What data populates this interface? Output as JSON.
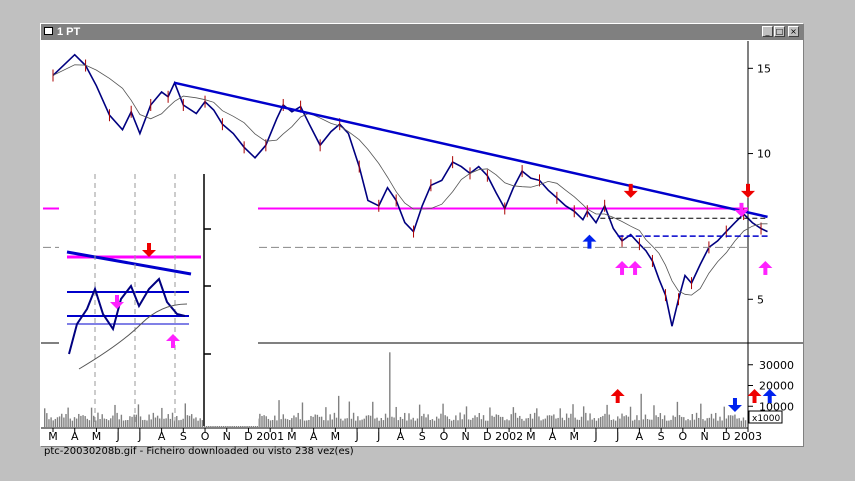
{
  "window": {
    "title": "1 PT",
    "min_glyph": "_",
    "max_glyph": "□",
    "close_glyph": "×"
  },
  "caption": "ptc-20030208b.gif - Ficheiro downloaded ou visto 238 vez(es)",
  "colors": {
    "price": "#000080",
    "trend": "#0000cc",
    "support": "#ff00ff",
    "red_arrow": "#ee0000",
    "blue_arrow": "#0022ee",
    "magenta_arrow": "#ff22ff",
    "volume": "#808080"
  },
  "chart_data": {
    "type": "line",
    "title": "1 PT",
    "price_axis": {
      "ticks": [
        5,
        10,
        15
      ],
      "ylim": [
        4.1,
        17
      ]
    },
    "volume_axis": {
      "ticks": [
        10000,
        20000,
        30000
      ],
      "tick_labels": [
        "10000",
        "20000",
        "30000"
      ],
      "unit_label": "x1000",
      "ylim": [
        0,
        40000
      ]
    },
    "x_labels": [
      "M",
      "A",
      "M",
      "J",
      "J",
      "A",
      "S",
      "O",
      "N",
      "D",
      "2001",
      "M",
      "A",
      "M",
      "J",
      "J",
      "A",
      "S",
      "O",
      "N",
      "D",
      "2002",
      "M",
      "A",
      "M",
      "J",
      "J",
      "A",
      "S",
      "O",
      "N",
      "D",
      "2003"
    ],
    "close_series": [
      [
        0,
        14.5
      ],
      [
        1,
        16
      ],
      [
        1.5,
        15.2
      ],
      [
        2,
        13.8
      ],
      [
        2.6,
        12
      ],
      [
        3.2,
        11.2
      ],
      [
        3.6,
        12.2
      ],
      [
        4,
        11
      ],
      [
        4.5,
        12.6
      ],
      [
        5,
        13.4
      ],
      [
        5.3,
        13.1
      ],
      [
        5.6,
        14
      ],
      [
        6,
        12.6
      ],
      [
        6.6,
        12.1
      ],
      [
        7,
        12.8
      ],
      [
        7.4,
        12.3
      ],
      [
        7.8,
        11.5
      ],
      [
        8.3,
        11
      ],
      [
        8.8,
        10.3
      ],
      [
        9.3,
        9.8
      ],
      [
        9.8,
        10.4
      ],
      [
        10.3,
        11.8
      ],
      [
        10.6,
        12.6
      ],
      [
        11,
        12.2
      ],
      [
        11.4,
        12.5
      ],
      [
        11.8,
        11.5
      ],
      [
        12.3,
        10.4
      ],
      [
        12.8,
        11.1
      ],
      [
        13.2,
        11.5
      ],
      [
        13.6,
        11
      ],
      [
        14.1,
        9.4
      ],
      [
        14.5,
        8
      ],
      [
        15,
        7.8
      ],
      [
        15.4,
        8.5
      ],
      [
        15.8,
        8
      ],
      [
        16.2,
        7.2
      ],
      [
        16.6,
        6.9
      ],
      [
        17,
        7.8
      ],
      [
        17.4,
        8.6
      ],
      [
        17.9,
        8.8
      ],
      [
        18.4,
        9.6
      ],
      [
        18.8,
        9.4
      ],
      [
        19.2,
        9.1
      ],
      [
        19.6,
        9.4
      ],
      [
        20,
        9
      ],
      [
        20.4,
        8.3
      ],
      [
        20.8,
        7.7
      ],
      [
        21.2,
        8.5
      ],
      [
        21.6,
        9.2
      ],
      [
        22,
        8.9
      ],
      [
        22.4,
        8.8
      ],
      [
        22.8,
        8.4
      ],
      [
        23.2,
        8.1
      ],
      [
        23.6,
        7.8
      ],
      [
        24,
        7.6
      ],
      [
        24.4,
        7.3
      ],
      [
        24.6,
        7.6
      ],
      [
        25,
        7.2
      ],
      [
        25.4,
        7.8
      ],
      [
        25.8,
        7
      ],
      [
        26.2,
        6.6
      ],
      [
        26.6,
        6.8
      ],
      [
        27,
        6.5
      ],
      [
        27.3,
        6.3
      ],
      [
        27.6,
        6
      ],
      [
        27.9,
        5.5
      ],
      [
        28.2,
        5.1
      ],
      [
        28.5,
        4.4
      ],
      [
        28.8,
        5
      ],
      [
        29.1,
        5.6
      ],
      [
        29.4,
        5.4
      ],
      [
        29.8,
        5.9
      ],
      [
        30.2,
        6.4
      ],
      [
        30.6,
        6.6
      ],
      [
        31,
        6.9
      ],
      [
        31.4,
        7.2
      ],
      [
        31.8,
        7.5
      ],
      [
        32.2,
        7.2
      ],
      [
        32.6,
        7
      ],
      [
        32.9,
        6.9
      ]
    ],
    "trendline": [
      [
        5.6,
        14
      ],
      [
        32.9,
        7.4
      ]
    ],
    "support_level": 7.7,
    "arrows": [
      {
        "type": "down",
        "color": "red",
        "x": 26.6,
        "y": 8.1
      },
      {
        "type": "down",
        "color": "red",
        "x": 32.0,
        "y": 8.1
      },
      {
        "type": "up",
        "color": "blue",
        "x": 24.7,
        "y": 6.8
      },
      {
        "type": "up",
        "color": "magenta",
        "x": 26.2,
        "y": 6.0
      },
      {
        "type": "up",
        "color": "magenta",
        "x": 26.8,
        "y": 6.0
      },
      {
        "type": "down",
        "color": "magenta",
        "x": 31.7,
        "y": 7.4
      },
      {
        "type": "up",
        "color": "magenta",
        "x": 32.8,
        "y": 6.0
      }
    ],
    "volume_arrows": [
      {
        "type": "up",
        "color": "red",
        "x": 26.0
      },
      {
        "type": "down",
        "color": "blue",
        "x": 31.4
      },
      {
        "type": "up",
        "color": "red",
        "x": 32.3
      },
      {
        "type": "up",
        "color": "blue",
        "x": 33.0
      }
    ]
  }
}
